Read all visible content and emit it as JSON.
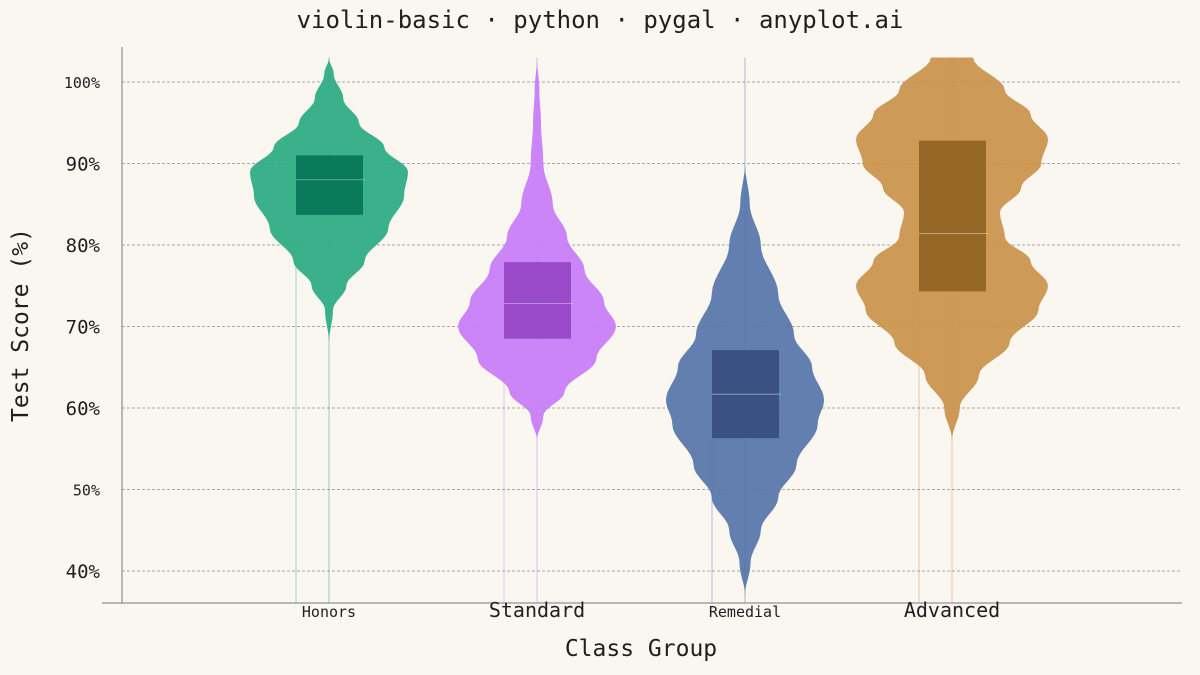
{
  "chart_data": {
    "type": "violin",
    "title": "violin-basic · python · pygal · anyplot.ai",
    "xlabel": "Class Group",
    "ylabel": "Test Score (%)",
    "y_ticks": [
      {
        "value": 40,
        "label": "40%",
        "major": true
      },
      {
        "value": 50,
        "label": "50%",
        "major": false
      },
      {
        "value": 60,
        "label": "60%",
        "major": true
      },
      {
        "value": 70,
        "label": "70%",
        "major": true
      },
      {
        "value": 80,
        "label": "80%",
        "major": true
      },
      {
        "value": 90,
        "label": "90%",
        "major": true
      },
      {
        "value": 100,
        "label": "100%",
        "major": false
      }
    ],
    "grid": true,
    "series": [
      {
        "name": "Honors",
        "label_major": false,
        "color": "#2AAA82",
        "box_color": "#0B7A5A",
        "min": 68,
        "max": 103,
        "q1": 83.7,
        "median": 88.0,
        "q3": 91.0,
        "profile": [
          [
            68,
            0.0
          ],
          [
            72,
            0.05
          ],
          [
            75,
            0.22
          ],
          [
            78,
            0.45
          ],
          [
            82,
            0.75
          ],
          [
            86,
            0.95
          ],
          [
            89,
            1.0
          ],
          [
            92,
            0.7
          ],
          [
            95,
            0.38
          ],
          [
            98,
            0.18
          ],
          [
            101,
            0.06
          ],
          [
            103,
            0.0
          ]
        ]
      },
      {
        "name": "Standard",
        "label_major": true,
        "color": "#C77BF6",
        "box_color": "#9A4BC9",
        "min": 56,
        "max": 103,
        "q1": 68.5,
        "median": 72.8,
        "q3": 77.9,
        "profile": [
          [
            56,
            0.0
          ],
          [
            59,
            0.08
          ],
          [
            62,
            0.35
          ],
          [
            66,
            0.75
          ],
          [
            70,
            1.0
          ],
          [
            73,
            0.85
          ],
          [
            77,
            0.6
          ],
          [
            81,
            0.38
          ],
          [
            85,
            0.2
          ],
          [
            90,
            0.08
          ],
          [
            95,
            0.05
          ],
          [
            99,
            0.03
          ],
          [
            103,
            0.0
          ]
        ]
      },
      {
        "name": "Remedial",
        "label_major": false,
        "color": "#5574AA",
        "box_color": "#3A5283",
        "min": 37,
        "max": 90,
        "q1": 56.3,
        "median": 61.7,
        "q3": 67.1,
        "profile": [
          [
            37,
            0.0
          ],
          [
            41,
            0.07
          ],
          [
            45,
            0.2
          ],
          [
            49,
            0.42
          ],
          [
            53,
            0.65
          ],
          [
            58,
            0.92
          ],
          [
            61,
            1.0
          ],
          [
            65,
            0.85
          ],
          [
            69,
            0.62
          ],
          [
            74,
            0.42
          ],
          [
            80,
            0.2
          ],
          [
            85,
            0.06
          ],
          [
            90,
            0.0
          ]
        ]
      },
      {
        "name": "Advanced",
        "label_major": true,
        "color": "#C9924A",
        "box_color": "#976727",
        "min": 56,
        "max": 103,
        "q1": 74.3,
        "median": 81.4,
        "q3": 92.8,
        "profile": [
          [
            56,
            0.0
          ],
          [
            60,
            0.08
          ],
          [
            64,
            0.28
          ],
          [
            68,
            0.6
          ],
          [
            72,
            0.9
          ],
          [
            75,
            1.0
          ],
          [
            78,
            0.82
          ],
          [
            81,
            0.55
          ],
          [
            84,
            0.5
          ],
          [
            87,
            0.72
          ],
          [
            90,
            0.93
          ],
          [
            93,
            1.0
          ],
          [
            96,
            0.82
          ],
          [
            99,
            0.55
          ],
          [
            103,
            0.22
          ]
        ]
      }
    ]
  }
}
